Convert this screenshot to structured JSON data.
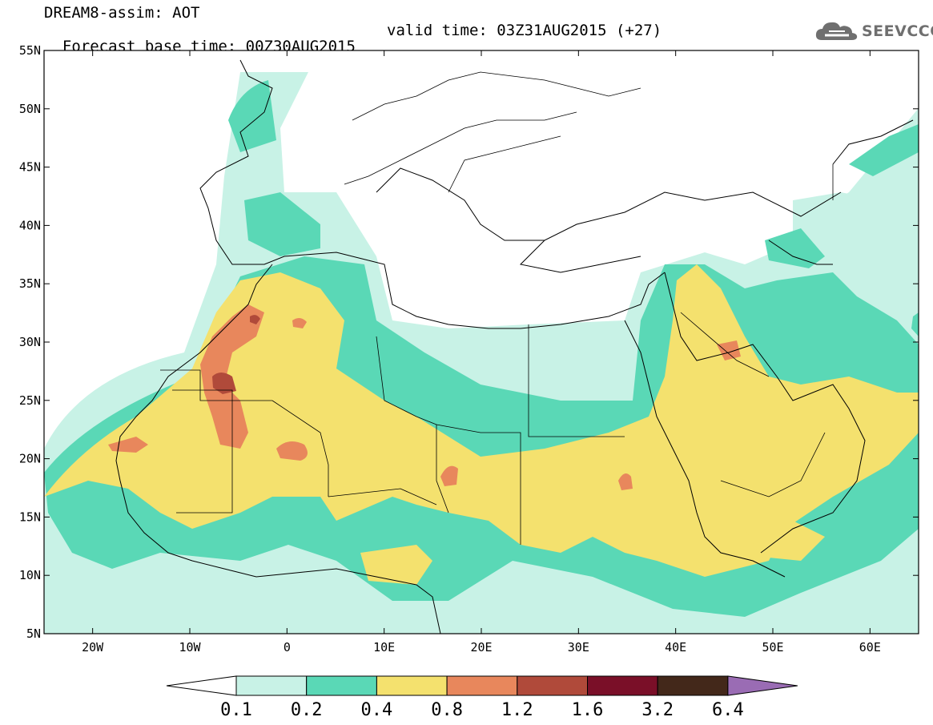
{
  "header": {
    "line1": "DREAM8-assim: AOT",
    "line2_left": "Forecast base time: 00Z30AUG2015",
    "line2_right": "valid time: 03Z31AUG2015 (+27)"
  },
  "logo": {
    "text": "SEEVCCC",
    "icon": "cloud-logo-icon"
  },
  "map": {
    "lon_range": [
      -25,
      65
    ],
    "lat_range": [
      5,
      55
    ],
    "lat_ticks": [
      "55N",
      "50N",
      "45N",
      "40N",
      "35N",
      "30N",
      "25N",
      "20N",
      "15N",
      "10N",
      "5N"
    ],
    "lon_ticks": [
      "20W",
      "10W",
      "0",
      "10E",
      "20E",
      "30E",
      "40E",
      "50E",
      "60E"
    ]
  },
  "colorbar": {
    "labels": [
      "0.1",
      "0.2",
      "0.4",
      "0.8",
      "1.2",
      "1.6",
      "3.2",
      "6.4"
    ],
    "colors": [
      "#c8f2e6",
      "#5ad8b6",
      "#f4e16e",
      "#e8875c",
      "#b04a3a",
      "#7a0f28",
      "#43281a"
    ],
    "under_color": "#ffffff",
    "over_color": "#9a6cb4"
  }
}
